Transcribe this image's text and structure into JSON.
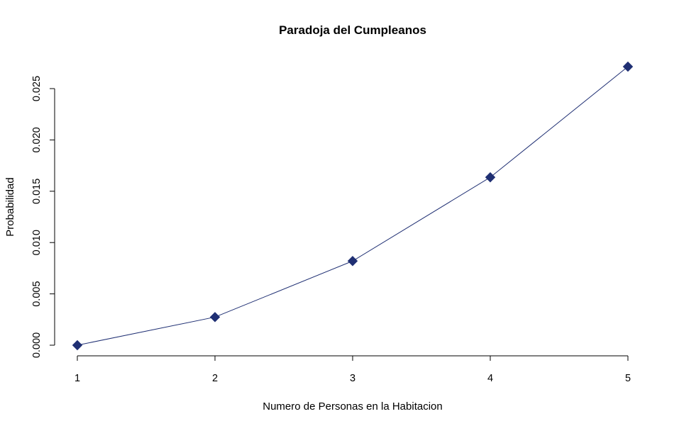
{
  "chart_data": {
    "type": "line",
    "title": "Paradoja del Cumpleanos",
    "xlabel": "Numero de Personas en la Habitacion",
    "ylabel": "Probabilidad",
    "x": [
      1,
      2,
      3,
      4,
      5
    ],
    "series": [
      {
        "values": [
          0.0,
          0.00274,
          0.0082,
          0.01636,
          0.02714
        ]
      }
    ],
    "xlim": [
      1,
      5
    ],
    "ylim": [
      0.0,
      0.025
    ],
    "xticks": [
      "1",
      "2",
      "3",
      "4",
      "5"
    ],
    "yticks": [
      "0.000",
      "0.005",
      "0.010",
      "0.015",
      "0.020",
      "0.025"
    ],
    "color": "#1f2f73",
    "marker": "diamond",
    "grid": false,
    "legend": "none"
  }
}
